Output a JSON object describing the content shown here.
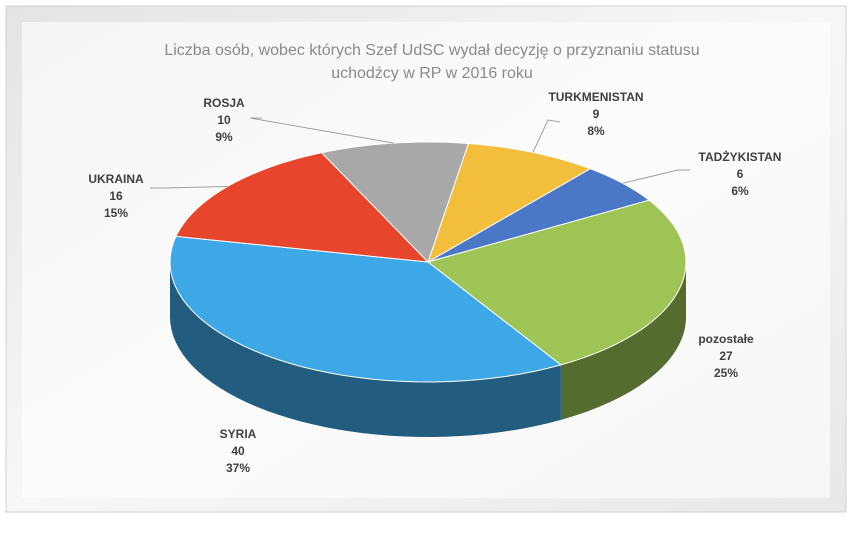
{
  "chart_data": {
    "type": "pie3d",
    "title": [
      "Liczba osób, wobec których Szef UdSC wydał decyzję o  przyznaniu statusu",
      "uchodźcy w RP w 2016 roku"
    ],
    "categories": [
      "TURKMENISTAN",
      "TADŻYKISTAN",
      "pozostałe",
      "SYRIA",
      "UKRAINA",
      "ROSJA"
    ],
    "values": [
      9,
      6,
      27,
      40,
      16,
      10
    ],
    "percent_labels": [
      "8%",
      "6%",
      "25%",
      "37%",
      "15%",
      "9%"
    ],
    "colors": [
      "#f2be3c",
      "#4a78c6",
      "#9dc455",
      "#3ea8e6",
      "#e8462c",
      "#a8a8a8"
    ]
  }
}
